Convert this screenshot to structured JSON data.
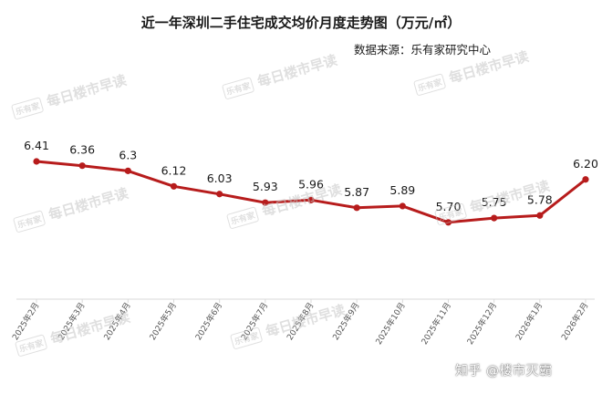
{
  "title": "近一年深圳二手住宅成交均价月度走势图（万元/㎡）",
  "source": "数据来源：乐有家研究中心",
  "credit": "知乎 @楼市灭霸",
  "watermark": {
    "logo_text": "乐有家",
    "text": "每日楼市早读"
  },
  "colors": {
    "line": "#b71c1c",
    "axis": "#d9d9d9",
    "text": "#1a1a1a"
  },
  "chart_data": {
    "type": "line",
    "title": "近一年深圳二手住宅成交均价月度走势图（万元/㎡）",
    "xlabel": "",
    "ylabel": "",
    "grid": false,
    "categories": [
      "2025年2月",
      "2025年3月",
      "2025年4月",
      "2025年5月",
      "2025年6月",
      "2025年7月",
      "2025年8月",
      "2025年9月",
      "2025年10月",
      "2025年11月",
      "2025年12月",
      "2026年1月",
      "2026年2月"
    ],
    "series": [
      {
        "values": [
          6.41,
          6.36,
          6.3,
          6.12,
          6.03,
          5.93,
          5.96,
          5.87,
          5.89,
          5.7,
          5.75,
          5.78,
          6.2
        ],
        "labels": [
          "6.41",
          "6.36",
          "6.3",
          "6.12",
          "6.03",
          "5.93",
          "5.96",
          "5.87",
          "5.89",
          "5.70",
          "5.75",
          "5.78",
          "6.20"
        ]
      }
    ]
  }
}
